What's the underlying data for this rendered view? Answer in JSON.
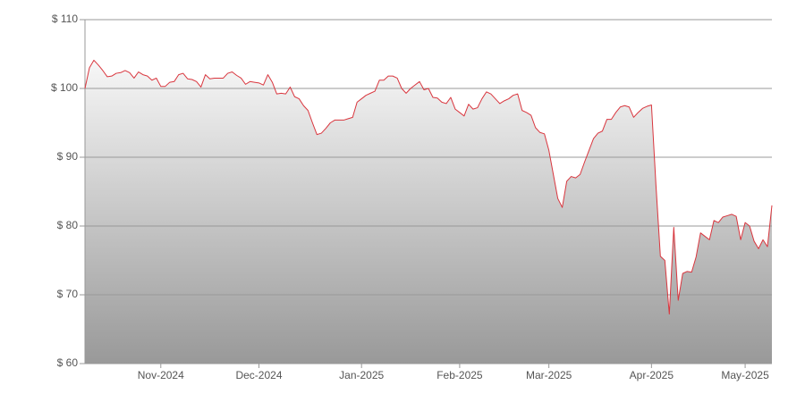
{
  "chart_data": {
    "type": "area",
    "color": "#d9363e",
    "grid": true,
    "ylim": [
      60,
      110
    ],
    "yticks": [
      {
        "value": 60,
        "label": "$ 60"
      },
      {
        "value": 70,
        "label": "$ 70"
      },
      {
        "value": 80,
        "label": "$ 80"
      },
      {
        "value": 90,
        "label": "$ 90"
      },
      {
        "value": 100,
        "label": "$ 100"
      },
      {
        "value": 110,
        "label": "$ 110"
      }
    ],
    "categories": [
      null,
      null,
      null,
      null,
      null,
      null,
      null,
      null,
      null,
      null,
      null,
      null,
      null,
      null,
      null,
      null,
      null,
      "Nov-2024",
      null,
      null,
      null,
      null,
      null,
      null,
      null,
      null,
      null,
      null,
      null,
      null,
      null,
      null,
      null,
      null,
      null,
      null,
      null,
      null,
      null,
      "Dec-2024",
      null,
      null,
      null,
      null,
      null,
      null,
      null,
      null,
      null,
      null,
      null,
      null,
      null,
      null,
      null,
      null,
      null,
      null,
      null,
      null,
      null,
      null,
      "Jan-2025",
      null,
      null,
      null,
      null,
      null,
      null,
      null,
      null,
      null,
      null,
      null,
      null,
      null,
      null,
      null,
      null,
      null,
      null,
      null,
      null,
      null,
      "Feb-2025",
      null,
      null,
      null,
      null,
      null,
      null,
      null,
      null,
      null,
      null,
      null,
      null,
      null,
      null,
      null,
      null,
      null,
      null,
      null,
      "Mar-2025",
      null,
      null,
      null,
      null,
      null,
      null,
      null,
      null,
      null,
      null,
      null,
      null,
      null,
      null,
      null,
      null,
      null,
      null,
      null,
      null,
      null,
      null,
      "Apr-2025",
      null,
      null,
      null,
      null,
      null,
      null,
      null,
      null,
      null,
      null,
      null,
      null,
      null,
      null,
      null,
      null,
      null,
      null,
      null,
      null,
      "May-2025",
      null,
      null,
      null,
      null,
      null,
      null
    ],
    "values": [
      100,
      103,
      104.1,
      103.4,
      102.6,
      101.7,
      101.8,
      102.2,
      102.3,
      102.6,
      102.3,
      101.5,
      102.4,
      102,
      101.8,
      101.2,
      101.5,
      100.3,
      100.3,
      100.9,
      101,
      102,
      102.2,
      101.4,
      101.3,
      101,
      100.2,
      102,
      101.4,
      101.5,
      101.5,
      101.5,
      102.2,
      102.4,
      101.9,
      101.5,
      100.6,
      101,
      100.9,
      100.8,
      100.5,
      102,
      100.9,
      99.2,
      99.3,
      99.2,
      100.2,
      98.8,
      98.5,
      97.5,
      96.8,
      95,
      93.3,
      93.5,
      94.2,
      95,
      95.4,
      95.4,
      95.4,
      95.6,
      95.8,
      98,
      98.5,
      99,
      99.3,
      99.6,
      101.2,
      101.2,
      101.8,
      101.8,
      101.5,
      100,
      99.3,
      100,
      100.5,
      101,
      99.8,
      100,
      98.7,
      98.6,
      98,
      97.8,
      98.7,
      97,
      96.5,
      96,
      97.7,
      97,
      97.2,
      98.5,
      99.5,
      99.2,
      98.5,
      97.8,
      98.2,
      98.5,
      99,
      99.2,
      96.8,
      96.5,
      96.1,
      94.3,
      93.6,
      93.4,
      91,
      87.5,
      84,
      82.7,
      86.5,
      87.2,
      87,
      87.5,
      89.3,
      91,
      92.7,
      93.5,
      93.8,
      95.5,
      95.5,
      96.5,
      97.3,
      97.5,
      97.3,
      95.8,
      96.5,
      97.1,
      97.4,
      97.6,
      86,
      75.6,
      75,
      67.2,
      79.8,
      69.2,
      73.1,
      73.4,
      73.3,
      75.5,
      79,
      78.5,
      78,
      80.8,
      80.5,
      81.3,
      81.5,
      81.7,
      81.4,
      78,
      80.5,
      80,
      77.8,
      76.7,
      78,
      77,
      83
    ]
  }
}
